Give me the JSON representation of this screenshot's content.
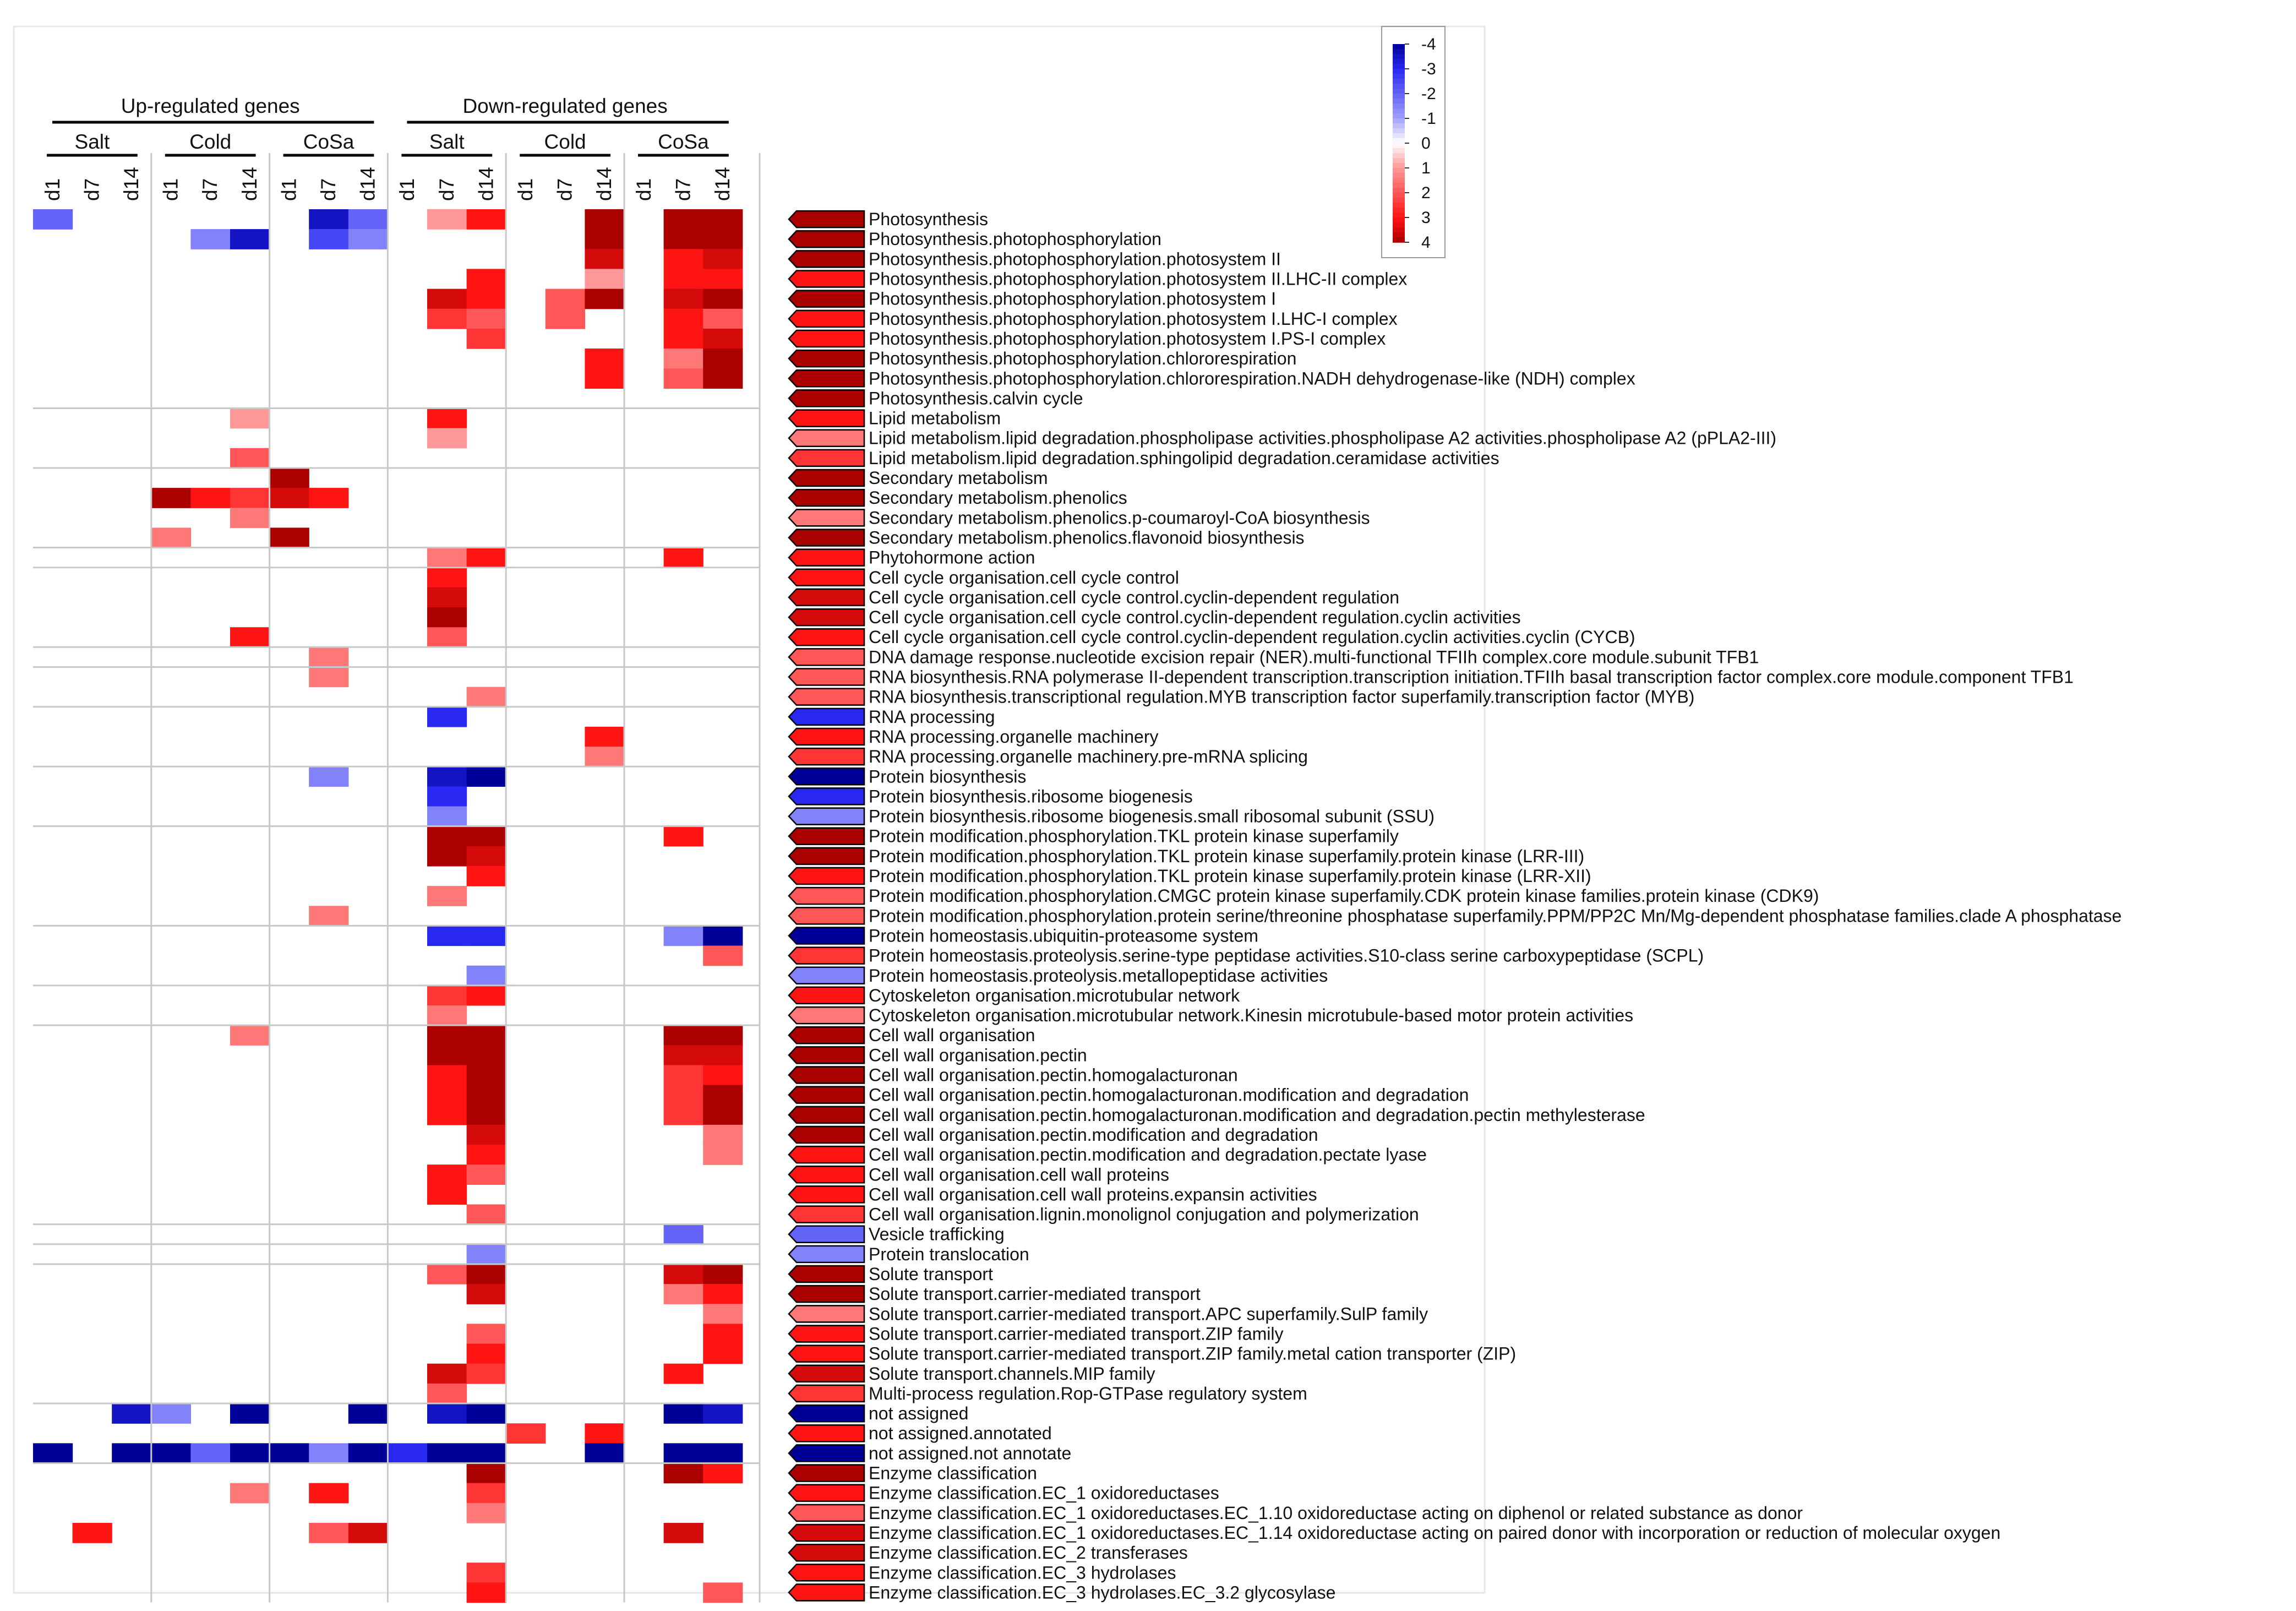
{
  "chart_data": {
    "type": "heatmap",
    "title": "",
    "groups": [
      {
        "label": "Up-regulated genes",
        "conditions": [
          "Salt",
          "Cold",
          "CoSa"
        ]
      },
      {
        "label": "Down-regulated genes",
        "conditions": [
          "Salt",
          "Cold",
          "CoSa"
        ]
      }
    ],
    "timepoints": [
      "d1",
      "d7",
      "d14"
    ],
    "columns": [
      "Up Salt d1",
      "Up Salt d7",
      "Up Salt d14",
      "Up Cold d1",
      "Up Cold d7",
      "Up Cold d14",
      "Up CoSa d1",
      "Up CoSa d7",
      "Up CoSa d14",
      "Down Salt d1",
      "Down Salt d7",
      "Down Salt d14",
      "Down Cold d1",
      "Down Cold d7",
      "Down Cold d14",
      "Down CoSa d1",
      "Down CoSa d7",
      "Down CoSa d14"
    ],
    "legend": {
      "ticks": [
        -4,
        -3,
        -2,
        -1,
        0,
        1,
        2,
        3,
        4
      ],
      "tick_labels": [
        "-4",
        "-3",
        "-2",
        "-1",
        "0",
        "1",
        "2",
        "3",
        "4"
      ],
      "range": [
        -4,
        4
      ],
      "low_color": "#000099",
      "mid_color": "#ffffff",
      "high_color": "#aa0000"
    },
    "row_groups": [
      10,
      3,
      4,
      1,
      4,
      1,
      2,
      3,
      3,
      5,
      3,
      2,
      10,
      1,
      1,
      7,
      3,
      7
    ],
    "rows": [
      {
        "label": "Photosynthesis",
        "value": 4,
        "cells": {
          "0": -2,
          "7": -3.5,
          "8": -2,
          "10": 1,
          "11": 3,
          "14": 4,
          "16": 4,
          "17": 4
        }
      },
      {
        "label": "Photosynthesis.photophosphorylation",
        "value": 4,
        "cells": {
          "4": -1.5,
          "5": -3.5,
          "7": -2.5,
          "8": -1.5,
          "14": 4,
          "16": 4,
          "17": 4
        }
      },
      {
        "label": "Photosynthesis.photophosphorylation.photosystem II",
        "value": 4,
        "cells": {
          "14": 3.5,
          "16": 3,
          "17": 3.5
        }
      },
      {
        "label": "Photosynthesis.photophosphorylation.photosystem II.LHC-II complex",
        "value": 3,
        "cells": {
          "11": 3,
          "14": 1,
          "16": 3,
          "17": 3
        }
      },
      {
        "label": "Photosynthesis.photophosphorylation.photosystem I",
        "value": 4,
        "cells": {
          "10": 3.5,
          "11": 3,
          "13": 2,
          "14": 4,
          "16": 3.5,
          "17": 4
        }
      },
      {
        "label": "Photosynthesis.photophosphorylation.photosystem I.LHC-I complex",
        "value": 3,
        "cells": {
          "10": 2.5,
          "11": 2,
          "13": 2,
          "16": 3,
          "17": 2
        }
      },
      {
        "label": "Photosynthesis.photophosphorylation.photosystem I.PS-I complex",
        "value": 3,
        "cells": {
          "11": 2.5,
          "16": 3,
          "17": 3.5
        }
      },
      {
        "label": "Photosynthesis.photophosphorylation.chlororespiration",
        "value": 4,
        "cells": {
          "14": 3,
          "16": 1.5,
          "17": 4
        }
      },
      {
        "label": "Photosynthesis.photophosphorylation.chlororespiration.NADH dehydrogenase-like (NDH) complex",
        "value": 4,
        "cells": {
          "14": 3,
          "16": 2,
          "17": 4
        }
      },
      {
        "label": "Photosynthesis.calvin cycle",
        "value": 4,
        "cells": {}
      },
      {
        "label": "Lipid metabolism",
        "value": 3,
        "cells": {
          "5": 1,
          "10": 3
        }
      },
      {
        "label": "Lipid metabolism.lipid degradation.phospholipase activities.phospholipase A2 activities.phospholipase A2 (pPLA2-III)",
        "value": 1.5,
        "cells": {
          "10": 1
        }
      },
      {
        "label": "Lipid metabolism.lipid degradation.sphingolipid degradation.ceramidase activities",
        "value": 2.5,
        "cells": {
          "5": 2
        }
      },
      {
        "label": "Secondary metabolism",
        "value": 4,
        "cells": {
          "6": 4
        }
      },
      {
        "label": "Secondary metabolism.phenolics",
        "value": 4,
        "cells": {
          "3": 4,
          "4": 3,
          "5": 2.5,
          "6": 3.5,
          "7": 3
        }
      },
      {
        "label": "Secondary metabolism.phenolics.p-coumaroyl-CoA biosynthesis",
        "value": 1.5,
        "cells": {
          "5": 1.5
        }
      },
      {
        "label": "Secondary metabolism.phenolics.flavonoid biosynthesis",
        "value": 4,
        "cells": {
          "3": 1.5,
          "6": 4
        }
      },
      {
        "label": "Phytohormone action",
        "value": 3,
        "cells": {
          "10": 1.5,
          "11": 3,
          "16": 3
        }
      },
      {
        "label": "Cell cycle organisation.cell cycle control",
        "value": 3,
        "cells": {
          "10": 3
        }
      },
      {
        "label": "Cell cycle organisation.cell cycle control.cyclin-dependent regulation",
        "value": 3.5,
        "cells": {
          "10": 3.5
        }
      },
      {
        "label": "Cell cycle organisation.cell cycle control.cyclin-dependent regulation.cyclin activities",
        "value": 3.5,
        "cells": {
          "10": 4
        }
      },
      {
        "label": "Cell cycle organisation.cell cycle control.cyclin-dependent regulation.cyclin activities.cyclin (CYCB)",
        "value": 3,
        "cells": {
          "5": 3,
          "10": 2
        }
      },
      {
        "label": "DNA damage response.nucleotide excision repair (NER).multi-functional TFIIh complex.core module.subunit TFB1",
        "value": 2,
        "cells": {
          "7": 1.5
        }
      },
      {
        "label": "RNA biosynthesis.RNA polymerase II-dependent transcription.transcription initiation.TFIIh basal transcription factor complex.core module.component TFB1",
        "value": 2,
        "cells": {
          "7": 1.5
        }
      },
      {
        "label": "RNA biosynthesis.transcriptional regulation.MYB  transcription factor superfamily.transcription factor (MYB)",
        "value": 2,
        "cells": {
          "11": 1.5
        }
      },
      {
        "label": "RNA processing",
        "value": -3,
        "cells": {
          "10": -3
        }
      },
      {
        "label": "RNA processing.organelle machinery",
        "value": 3,
        "cells": {
          "14": 3
        }
      },
      {
        "label": "RNA processing.organelle machinery.pre-mRNA splicing",
        "value": 2.5,
        "cells": {
          "14": 1.5
        }
      },
      {
        "label": "Protein biosynthesis",
        "value": -4,
        "cells": {
          "7": -1.5,
          "10": -3.5,
          "11": -4
        }
      },
      {
        "label": "Protein biosynthesis.ribosome biogenesis",
        "value": -3,
        "cells": {
          "10": -3
        }
      },
      {
        "label": "Protein biosynthesis.ribosome biogenesis.small ribosomal subunit (SSU)",
        "value": -1.5,
        "cells": {
          "10": -1.5
        }
      },
      {
        "label": "Protein modification.phosphorylation.TKL protein kinase superfamily",
        "value": 4,
        "cells": {
          "10": 4,
          "11": 4,
          "16": 3
        }
      },
      {
        "label": "Protein modification.phosphorylation.TKL protein kinase superfamily.protein kinase (LRR-III)",
        "value": 4,
        "cells": {
          "10": 4,
          "11": 3.5
        }
      },
      {
        "label": "Protein modification.phosphorylation.TKL protein kinase superfamily.protein kinase (LRR-XII)",
        "value": 3,
        "cells": {
          "11": 3
        }
      },
      {
        "label": "Protein modification.phosphorylation.CMGC protein kinase superfamily.CDK protein kinase families.protein kinase (CDK9)",
        "value": 2,
        "cells": {
          "10": 1.5
        }
      },
      {
        "label": "Protein modification.phosphorylation.protein serine/threonine phosphatase superfamily.PPM/PP2C Mn/Mg-dependent phosphatase families.clade A phosphatase",
        "value": 2,
        "cells": {
          "7": 1.5
        }
      },
      {
        "label": "Protein homeostasis.ubiquitin-proteasome system",
        "value": -4,
        "cells": {
          "10": -3,
          "11": -3,
          "16": -1.5,
          "17": -4
        }
      },
      {
        "label": "Protein homeostasis.proteolysis.serine-type peptidase activities.S10-class serine carboxypeptidase (SCPL)",
        "value": 2.5,
        "cells": {
          "17": 2
        }
      },
      {
        "label": "Protein homeostasis.proteolysis.metallopeptidase activities",
        "value": -1.5,
        "cells": {
          "11": -1.5
        }
      },
      {
        "label": "Cytoskeleton organisation.microtubular network",
        "value": 3,
        "cells": {
          "10": 2.5,
          "11": 3
        }
      },
      {
        "label": "Cytoskeleton organisation.microtubular network.Kinesin microtubule-based motor protein activities",
        "value": 1.5,
        "cells": {
          "10": 1.5
        }
      },
      {
        "label": "Cell wall organisation",
        "value": 4,
        "cells": {
          "5": 1.5,
          "10": 4,
          "11": 4,
          "16": 4,
          "17": 4
        }
      },
      {
        "label": "Cell wall organisation.pectin",
        "value": 4,
        "cells": {
          "10": 4,
          "11": 4,
          "16": 3.5,
          "17": 3.5
        }
      },
      {
        "label": "Cell wall organisation.pectin.homogalacturonan",
        "value": 4,
        "cells": {
          "10": 3,
          "11": 4,
          "16": 2.5,
          "17": 3
        }
      },
      {
        "label": "Cell wall organisation.pectin.homogalacturonan.modification and degradation",
        "value": 4,
        "cells": {
          "10": 3,
          "11": 4,
          "16": 2.5,
          "17": 4
        }
      },
      {
        "label": "Cell wall organisation.pectin.homogalacturonan.modification and degradation.pectin methylesterase",
        "value": 4,
        "cells": {
          "10": 3,
          "11": 4,
          "16": 2.5,
          "17": 4
        }
      },
      {
        "label": "Cell wall organisation.pectin.modification and degradation",
        "value": 4,
        "cells": {
          "11": 3.5,
          "17": 1.5
        }
      },
      {
        "label": "Cell wall organisation.pectin.modification and degradation.pectate lyase",
        "value": 3,
        "cells": {
          "11": 3,
          "17": 1.5
        }
      },
      {
        "label": "Cell wall organisation.cell wall proteins",
        "value": 3,
        "cells": {
          "10": 3,
          "11": 2
        }
      },
      {
        "label": "Cell wall organisation.cell wall proteins.expansin activities",
        "value": 3,
        "cells": {
          "10": 3
        }
      },
      {
        "label": "Cell wall organisation.lignin.monolignol conjugation and polymerization",
        "value": 2.5,
        "cells": {
          "11": 2
        }
      },
      {
        "label": "Vesicle trafficking",
        "value": -2,
        "cells": {
          "16": -2
        }
      },
      {
        "label": "Protein translocation",
        "value": -1.5,
        "cells": {
          "11": -1.5
        }
      },
      {
        "label": "Solute transport",
        "value": 4,
        "cells": {
          "10": 2,
          "11": 4,
          "16": 3.5,
          "17": 4
        }
      },
      {
        "label": "Solute transport.carrier-mediated transport",
        "value": 4,
        "cells": {
          "11": 3.5,
          "16": 1.5,
          "17": 3
        }
      },
      {
        "label": "Solute transport.carrier-mediated transport.APC superfamily.SulP family",
        "value": 1.5,
        "cells": {
          "17": 1.5
        }
      },
      {
        "label": "Solute transport.carrier-mediated transport.ZIP family",
        "value": 3,
        "cells": {
          "11": 2,
          "17": 3
        }
      },
      {
        "label": "Solute transport.carrier-mediated transport.ZIP family.metal cation transporter (ZIP)",
        "value": 3,
        "cells": {
          "11": 3,
          "17": 3
        }
      },
      {
        "label": "Solute transport.channels.MIP family",
        "value": 3.5,
        "cells": {
          "10": 3.5,
          "11": 2.5,
          "16": 3
        }
      },
      {
        "label": "Multi-process regulation.Rop-GTPase regulatory system",
        "value": 2.5,
        "cells": {
          "10": 2
        }
      },
      {
        "label": "not assigned",
        "value": -4,
        "cells": {
          "2": -3.5,
          "3": -1.5,
          "5": -4,
          "8": -4,
          "10": -3.5,
          "11": -4,
          "16": -4,
          "17": -3.5
        }
      },
      {
        "label": "not assigned.annotated",
        "value": 3,
        "cells": {
          "12": 2.5,
          "14": 3
        }
      },
      {
        "label": "not assigned.not annotate",
        "value": -4,
        "cells": {
          "0": -4,
          "2": -4,
          "3": -4,
          "4": -2,
          "5": -4,
          "6": -4,
          "7": -1.5,
          "8": -4,
          "9": -3,
          "10": -4,
          "11": -4,
          "14": -4,
          "16": -4,
          "17": -4
        }
      },
      {
        "label": "Enzyme classification",
        "value": 4,
        "cells": {
          "11": 4,
          "16": 4,
          "17": 3
        }
      },
      {
        "label": "Enzyme classification.EC_1 oxidoreductases",
        "value": 3,
        "cells": {
          "5": 1.5,
          "7": 3,
          "11": 2.5
        }
      },
      {
        "label": "Enzyme classification.EC_1 oxidoreductases.EC_1.10 oxidoreductase acting on diphenol or related substance as donor",
        "value": 2,
        "cells": {
          "11": 1.5
        }
      },
      {
        "label": "Enzyme classification.EC_1 oxidoreductases.EC_1.14 oxidoreductase acting on paired donor with incorporation or reduction of molecular oxygen",
        "value": 3.5,
        "cells": {
          "1": 3,
          "7": 2,
          "8": 3.5,
          "16": 3.5
        }
      },
      {
        "label": "Enzyme classification.EC_2 transferases",
        "value": 3.5,
        "cells": {}
      },
      {
        "label": "Enzyme classification.EC_3 hydrolases",
        "value": 3,
        "cells": {
          "11": 2.5
        }
      },
      {
        "label": "Enzyme classification.EC_3 hydrolases.EC_3.2 glycosylase",
        "value": 3,
        "cells": {
          "11": 3,
          "17": 2
        }
      }
    ]
  }
}
